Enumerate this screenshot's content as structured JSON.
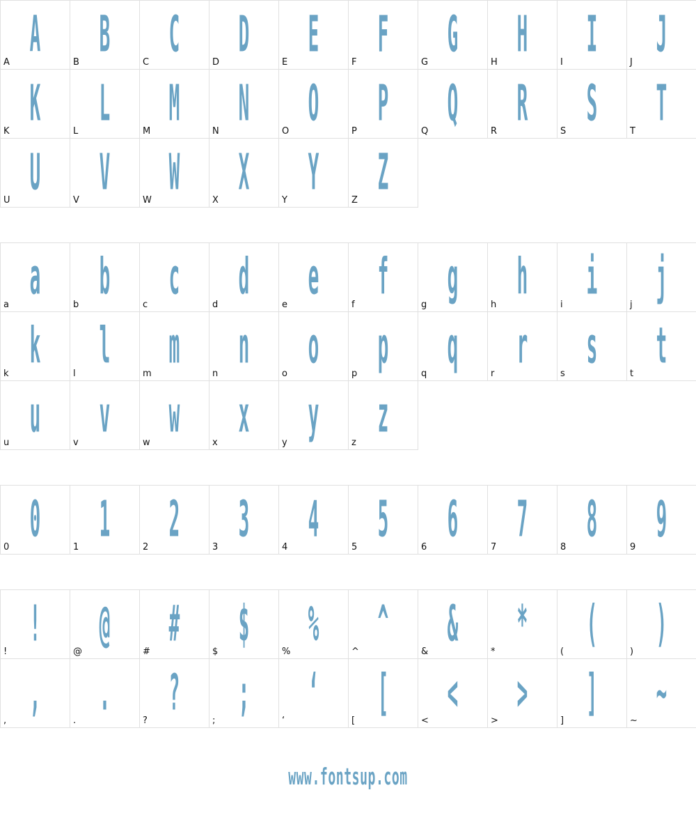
{
  "sections": [
    {
      "cells": [
        "A",
        "B",
        "C",
        "D",
        "E",
        "F",
        "G",
        "H",
        "I",
        "J",
        "K",
        "L",
        "M",
        "N",
        "O",
        "P",
        "Q",
        "R",
        "S",
        "T",
        "U",
        "V",
        "W",
        "X",
        "Y",
        "Z"
      ]
    },
    {
      "cells": [
        "a",
        "b",
        "c",
        "d",
        "e",
        "f",
        "g",
        "h",
        "i",
        "j",
        "k",
        "l",
        "m",
        "n",
        "o",
        "p",
        "q",
        "r",
        "s",
        "t",
        "u",
        "v",
        "w",
        "x",
        "y",
        "z"
      ]
    },
    {
      "cells": [
        "0",
        "1",
        "2",
        "3",
        "4",
        "5",
        "6",
        "7",
        "8",
        "9"
      ]
    },
    {
      "cells": [
        "!",
        "@",
        "#",
        "$",
        "%",
        "^",
        "&",
        "*",
        "(",
        ")",
        ",",
        ".",
        "?",
        ";",
        "‘",
        "[",
        "<",
        ">",
        "]",
        "~"
      ]
    }
  ],
  "footer": "www.fontsup.com"
}
